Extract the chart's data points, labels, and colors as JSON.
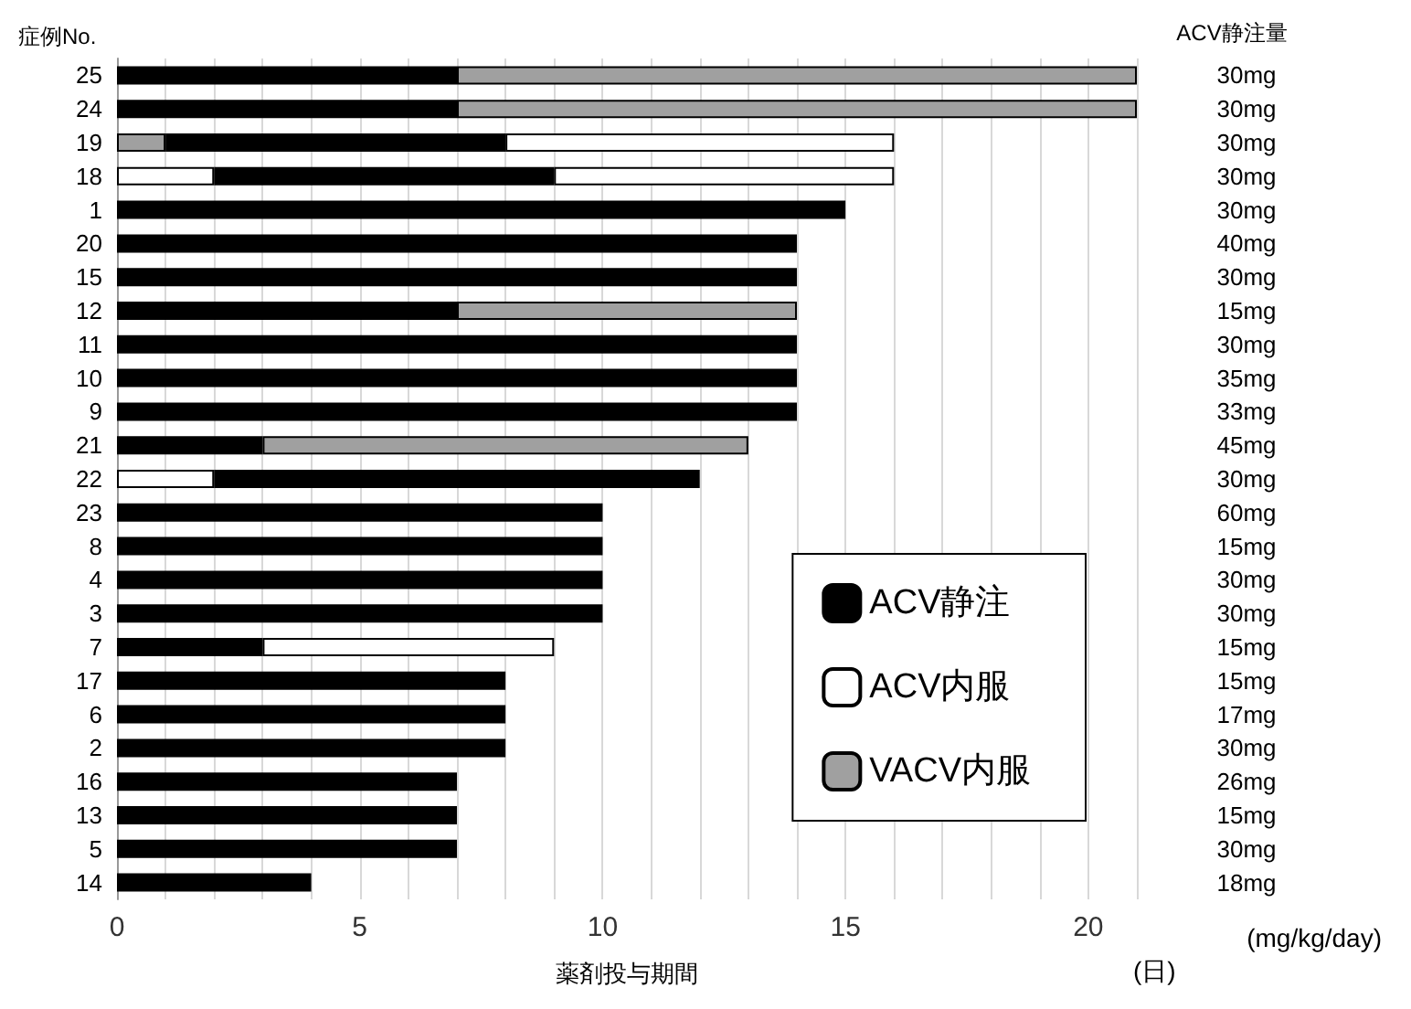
{
  "chart_data": {
    "type": "bar",
    "orientation": "horizontal",
    "stacked": true,
    "ylabel": "症例No.",
    "y2label": "ACV静注量",
    "xlabel": "薬剤投与期間",
    "annotations": [
      "(日)",
      "(mg/kg/day)"
    ],
    "categories": [
      "25",
      "24",
      "19",
      "18",
      "1",
      "20",
      "15",
      "12",
      "11",
      "10",
      "9",
      "21",
      "22",
      "23",
      "8",
      "4",
      "3",
      "7",
      "17",
      "6",
      "2",
      "16",
      "13",
      "5",
      "14"
    ],
    "y2_categories": [
      "30mg",
      "30mg",
      "30mg",
      "30mg",
      "30mg",
      "40mg",
      "30mg",
      "15mg",
      "30mg",
      "35mg",
      "33mg",
      "45mg",
      "30mg",
      "60mg",
      "15mg",
      "30mg",
      "30mg",
      "15mg",
      "15mg",
      "17mg",
      "30mg",
      "26mg",
      "15mg",
      "30mg",
      "18mg"
    ],
    "series": [
      {
        "color": "#a0a0a0",
        "values": [
          null,
          null,
          1,
          null,
          null,
          null,
          null,
          null,
          null,
          null,
          null,
          null,
          null,
          null,
          null,
          null,
          null,
          null,
          null,
          null,
          null,
          null,
          null,
          null,
          null
        ]
      },
      {
        "color": "#ffffff",
        "values": [
          null,
          null,
          null,
          2,
          null,
          null,
          null,
          null,
          null,
          null,
          null,
          null,
          2,
          null,
          null,
          null,
          null,
          null,
          null,
          null,
          null,
          null,
          null,
          null,
          null
        ]
      },
      {
        "name": "ACV静注",
        "color": "#000000",
        "values": [
          7,
          7,
          7,
          7,
          15,
          14,
          14,
          7,
          14,
          14,
          14,
          3,
          10,
          10,
          10,
          10,
          10,
          3,
          8,
          8,
          8,
          7,
          7,
          7,
          4
        ]
      },
      {
        "name": "ACV内服",
        "color": "#ffffff",
        "values": [
          null,
          null,
          8,
          7,
          null,
          null,
          null,
          null,
          null,
          null,
          null,
          null,
          null,
          null,
          null,
          null,
          null,
          6,
          null,
          null,
          null,
          null,
          null,
          null,
          null
        ]
      },
      {
        "name": "VACV内服",
        "color": "#a0a0a0",
        "values": [
          14,
          14,
          null,
          null,
          null,
          null,
          null,
          7,
          null,
          null,
          null,
          10,
          null,
          null,
          null,
          null,
          null,
          null,
          null,
          null,
          null,
          null,
          null,
          null,
          null
        ]
      }
    ],
    "xlim": [
      0,
      21
    ],
    "xticks": [
      0,
      {
        "value": 1,
        "label": null
      },
      {
        "value": 2,
        "label": null
      },
      {
        "value": 3,
        "label": null
      },
      {
        "value": 4,
        "label": null
      },
      5,
      {
        "value": 6,
        "label": null
      },
      {
        "value": 7,
        "label": null
      },
      {
        "value": 8,
        "label": null
      },
      {
        "value": 9,
        "label": null
      },
      10,
      {
        "value": 11,
        "label": null
      },
      {
        "value": 12,
        "label": null
      },
      {
        "value": 13,
        "label": null
      },
      {
        "value": 14,
        "label": null
      },
      15,
      {
        "value": 16,
        "label": null
      },
      {
        "value": 17,
        "label": null
      },
      {
        "value": 18,
        "label": null
      },
      {
        "value": 19,
        "label": null
      },
      20,
      {
        "value": 21,
        "label": null
      }
    ],
    "grid": "x",
    "legend": "bottom right"
  }
}
